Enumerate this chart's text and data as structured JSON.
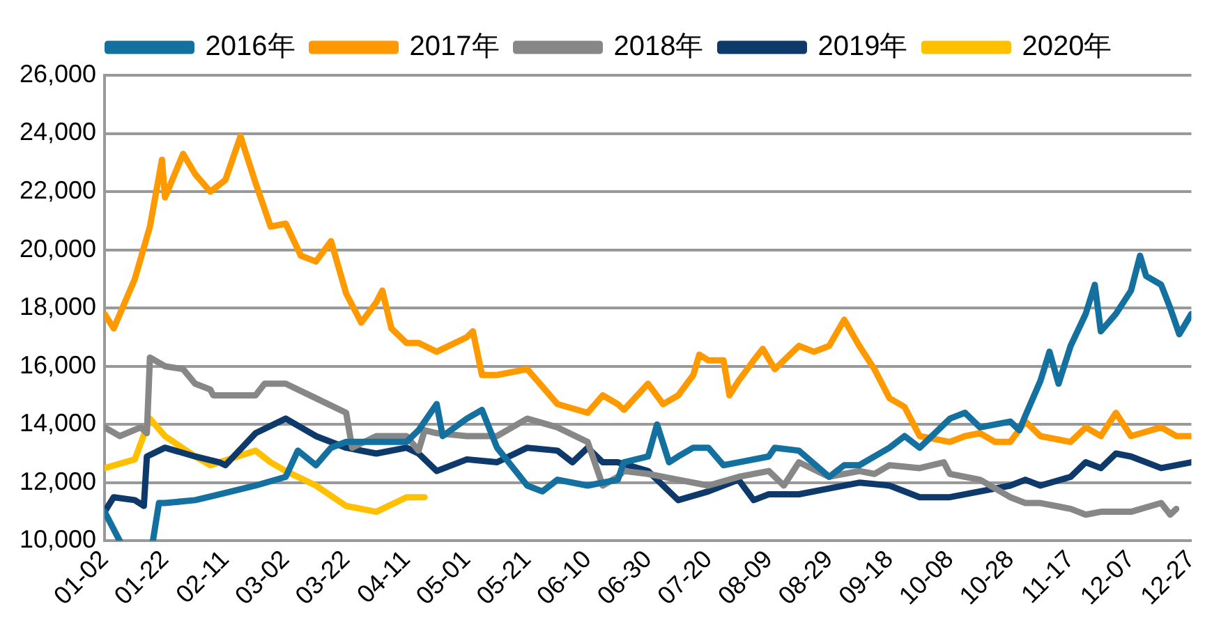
{
  "chart_data": {
    "type": "line",
    "legend": "top",
    "grid": "y",
    "marker": "none",
    "line_style": "solid",
    "xlim": [
      "--01-02",
      "--12-27"
    ],
    "xticks": [
      {
        "value": "--01-02",
        "label": "01-02"
      },
      {
        "value": "--01-22",
        "label": "01-22"
      },
      {
        "value": "--02-11",
        "label": "02-11"
      },
      {
        "value": "--03-02",
        "label": "03-02"
      },
      {
        "value": "--03-22",
        "label": "03-22"
      },
      {
        "value": "--04-11",
        "label": "04-11"
      },
      {
        "value": "--05-01",
        "label": "05-01"
      },
      {
        "value": "--05-21",
        "label": "05-21"
      },
      {
        "value": "--06-10",
        "label": "06-10"
      },
      {
        "value": "--06-30",
        "label": "06-30"
      },
      {
        "value": "--07-20",
        "label": "07-20"
      },
      {
        "value": "--08-09",
        "label": "08-09"
      },
      {
        "value": "--08-29",
        "label": "08-29"
      },
      {
        "value": "--09-18",
        "label": "09-18"
      },
      {
        "value": "--10-08",
        "label": "10-08"
      },
      {
        "value": "--10-28",
        "label": "10-28"
      },
      {
        "value": "--11-17",
        "label": "11-17"
      },
      {
        "value": "--12-07",
        "label": "12-07"
      },
      {
        "value": "--12-27",
        "label": "12-27"
      }
    ],
    "ylim": [
      10000,
      26000
    ],
    "yticks": [
      {
        "value": 10000,
        "label": "10,000"
      },
      {
        "value": 12000,
        "label": "12,000"
      },
      {
        "value": 14000,
        "label": "14,000"
      },
      {
        "value": 16000,
        "label": "16,000"
      },
      {
        "value": 18000,
        "label": "18,000"
      },
      {
        "value": 20000,
        "label": "20,000"
      },
      {
        "value": 22000,
        "label": "22,000"
      },
      {
        "value": 24000,
        "label": "24,000"
      },
      {
        "value": 26000,
        "label": "26,000"
      }
    ],
    "series": [
      {
        "name": "2016年",
        "color": "#13709f",
        "x": [
          "--01-02",
          "--01-07",
          "--01-12",
          "--01-18",
          "--01-20",
          "--01-22",
          "--02-01",
          "--02-09",
          "--02-21",
          "--03-02",
          "--03-06",
          "--03-12",
          "--03-17",
          "--03-22",
          "--04-01",
          "--04-11",
          "--04-15",
          "--04-21",
          "--04-23",
          "--05-01",
          "--05-06",
          "--05-11",
          "--05-21",
          "--05-26",
          "--05-31",
          "--06-10",
          "--06-20",
          "--06-22",
          "--06-30",
          "--07-03",
          "--07-07",
          "--07-10",
          "--07-15",
          "--07-20",
          "--07-25",
          "--07-30",
          "--08-09",
          "--08-11",
          "--08-19",
          "--08-29",
          "--09-03",
          "--09-08",
          "--09-18",
          "--09-23",
          "--09-28",
          "--10-08",
          "--10-13",
          "--10-18",
          "--10-28",
          "--10-31",
          "--11-02",
          "--11-07",
          "--11-10",
          "--11-13",
          "--11-17",
          "--11-22",
          "--11-25",
          "--11-27",
          "--12-02",
          "--12-07",
          "--12-10",
          "--12-12",
          "--12-17",
          "--12-20",
          "--12-23",
          "--12-27"
        ],
        "values": [
          11000,
          10000,
          null,
          10000,
          11300,
          11300,
          11400,
          11600,
          11900,
          12200,
          13100,
          12600,
          13200,
          13400,
          13400,
          13400,
          13800,
          14700,
          13600,
          14200,
          14500,
          13200,
          11900,
          11700,
          12100,
          11900,
          12100,
          12700,
          12900,
          14000,
          12700,
          12900,
          13200,
          13200,
          12600,
          12700,
          12900,
          13200,
          13100,
          12200,
          12600,
          12600,
          13200,
          13600,
          13200,
          14200,
          14400,
          13900,
          14100,
          13800,
          14300,
          15500,
          16500,
          15400,
          16700,
          17800,
          18800,
          17200,
          17800,
          18600,
          19800,
          19100,
          18800,
          18000,
          17100,
          17800
        ]
      },
      {
        "name": "2017年",
        "color": "#ff9900",
        "x": [
          "--01-02",
          "--01-05",
          "--01-12",
          "--01-17",
          "--01-21",
          "--01-22",
          "--01-28",
          "--02-01",
          "--02-06",
          "--02-11",
          "--02-16",
          "--02-21",
          "--02-26",
          "--03-02",
          "--03-07",
          "--03-12",
          "--03-17",
          "--03-22",
          "--03-27",
          "--04-01",
          "--04-03",
          "--04-06",
          "--04-11",
          "--04-15",
          "--04-21",
          "--05-01",
          "--05-03",
          "--05-06",
          "--05-11",
          "--05-21",
          "--05-31",
          "--06-10",
          "--06-15",
          "--06-20",
          "--06-22",
          "--06-30",
          "--07-05",
          "--07-10",
          "--07-15",
          "--07-17",
          "--07-20",
          "--07-25",
          "--07-27",
          "--07-30",
          "--08-04",
          "--08-07",
          "--08-11",
          "--08-19",
          "--08-24",
          "--08-29",
          "--09-03",
          "--09-08",
          "--09-13",
          "--09-18",
          "--09-23",
          "--09-28",
          "--10-08",
          "--10-13",
          "--10-18",
          "--10-23",
          "--10-28",
          "--11-02",
          "--11-07",
          "--11-17",
          "--11-22",
          "--11-27",
          "--12-02",
          "--12-07",
          "--12-17",
          "--12-22",
          "--12-27"
        ],
        "values": [
          17800,
          17300,
          19000,
          20800,
          23100,
          21800,
          23300,
          22600,
          22000,
          22400,
          23900,
          22300,
          20800,
          20900,
          19800,
          19600,
          20300,
          18500,
          17500,
          18200,
          18600,
          17300,
          16800,
          16800,
          16500,
          17000,
          17200,
          15700,
          15700,
          15900,
          14700,
          14400,
          15000,
          14700,
          14500,
          15400,
          14700,
          15000,
          15700,
          16400,
          16200,
          16200,
          15000,
          15500,
          16200,
          16600,
          15900,
          16700,
          16500,
          16700,
          17600,
          16700,
          15900,
          14900,
          14600,
          13600,
          13400,
          13600,
          13700,
          13400,
          13400,
          14100,
          13600,
          13400,
          13900,
          13600,
          14400,
          13600,
          13900,
          13600,
          13600
        ]
      },
      {
        "name": "2018年",
        "color": "#878787",
        "x": [
          "--01-02",
          "--01-07",
          "--01-14",
          "--01-16",
          "--01-17",
          "--01-22",
          "--01-28",
          "--02-01",
          "--02-06",
          "--02-07",
          "--02-21",
          "--02-24",
          "--03-02",
          "--03-12",
          "--03-22",
          "--03-24",
          "--04-01",
          "--04-11",
          "--04-15",
          "--04-17",
          "--04-21",
          "--05-01",
          "--05-11",
          "--05-21",
          "--05-31",
          "--06-10",
          "--06-15",
          "--06-20",
          "--06-22",
          "--06-30",
          "--07-10",
          "--07-20",
          "--07-30",
          "--08-09",
          "--08-14",
          "--08-19",
          "--08-29",
          "--09-08",
          "--09-13",
          "--09-18",
          "--09-28",
          "--10-06",
          "--10-08",
          "--10-18",
          "--10-28",
          "--11-02",
          "--11-07",
          "--11-17",
          "--11-22",
          "--11-27",
          "--12-07",
          "--12-17",
          "--12-20",
          "--12-22"
        ],
        "values": [
          13900,
          13600,
          13900,
          13700,
          16300,
          16000,
          15900,
          15400,
          15200,
          15000,
          15000,
          15400,
          15400,
          14900,
          14400,
          13200,
          13600,
          13600,
          13100,
          13800,
          13700,
          13600,
          13600,
          14200,
          13900,
          13400,
          11900,
          12200,
          12400,
          12300,
          12100,
          11900,
          12200,
          12400,
          11900,
          12700,
          12200,
          12400,
          12300,
          12600,
          12500,
          12700,
          12300,
          12100,
          11500,
          11300,
          11300,
          11100,
          10900,
          11000,
          11000,
          11300,
          10900,
          11100
        ]
      },
      {
        "name": "2019年",
        "color": "#0d3a6a",
        "x": [
          "--01-02",
          "--01-05",
          "--01-12",
          "--01-15",
          "--01-16",
          "--01-22",
          "--02-01",
          "--02-09",
          "--02-11",
          "--02-21",
          "--03-02",
          "--03-12",
          "--03-22",
          "--04-01",
          "--04-11",
          "--04-15",
          "--04-21",
          "--05-01",
          "--05-11",
          "--05-21",
          "--05-31",
          "--06-05",
          "--06-10",
          "--06-15",
          "--06-20",
          "--06-30",
          "--07-10",
          "--07-20",
          "--07-30",
          "--08-04",
          "--08-09",
          "--08-19",
          "--08-29",
          "--09-08",
          "--09-18",
          "--09-28",
          "--10-08",
          "--10-18",
          "--10-28",
          "--11-02",
          "--11-07",
          "--11-17",
          "--11-22",
          "--11-27",
          "--12-02",
          "--12-07",
          "--12-17",
          "--12-27"
        ],
        "values": [
          11000,
          11500,
          11400,
          11200,
          12900,
          13200,
          12900,
          12700,
          12600,
          13700,
          14200,
          13600,
          13200,
          13000,
          13200,
          13000,
          12400,
          12800,
          12700,
          13200,
          13100,
          12700,
          13200,
          12700,
          12700,
          12400,
          11400,
          11700,
          12100,
          11400,
          11600,
          11600,
          11800,
          12000,
          11900,
          11500,
          11500,
          11700,
          11900,
          12100,
          11900,
          12200,
          12700,
          12500,
          13000,
          12900,
          12500,
          12700
        ]
      },
      {
        "name": "2020年",
        "color": "#ffc000",
        "x": [
          "--01-02",
          "--01-12",
          "--01-17",
          "--01-22",
          "--02-01",
          "--02-06",
          "--02-21",
          "--02-26",
          "--03-02",
          "--03-12",
          "--03-22",
          "--04-01",
          "--04-11",
          "--04-17"
        ],
        "values": [
          12500,
          12800,
          14200,
          13600,
          12900,
          12600,
          13100,
          12700,
          12400,
          11900,
          11200,
          11000,
          11500,
          11500
        ]
      }
    ]
  }
}
